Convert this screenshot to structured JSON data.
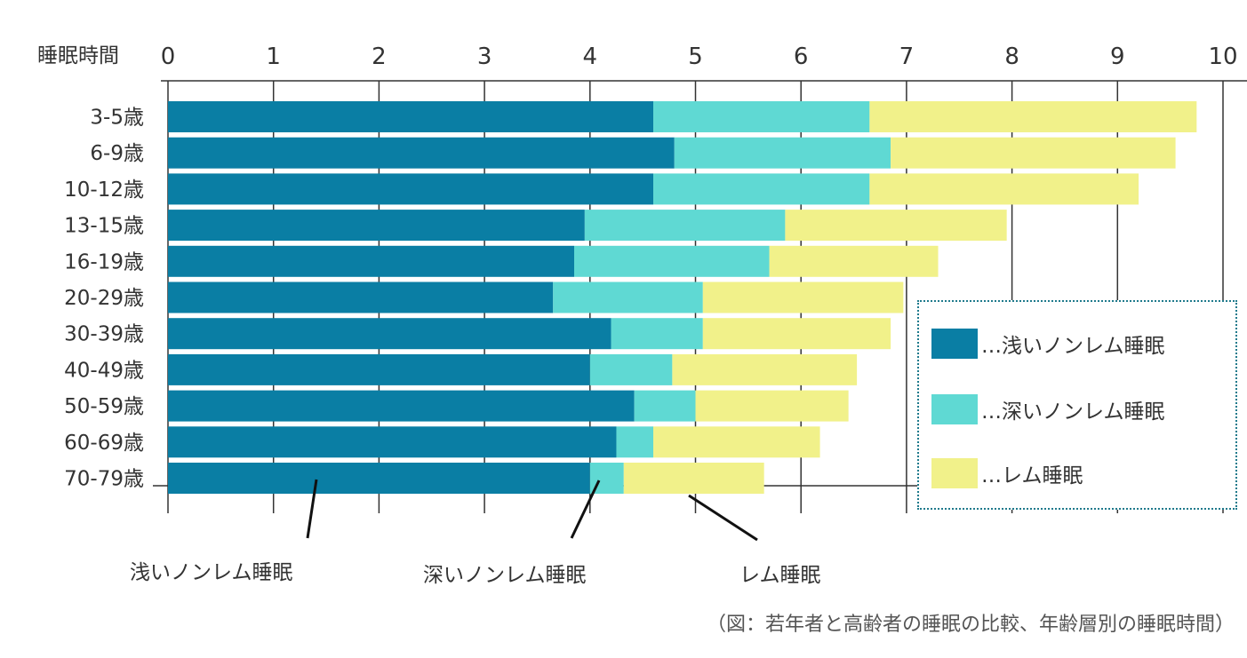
{
  "chart_data": {
    "type": "bar",
    "stacked": true,
    "orientation": "horizontal",
    "axis_title": "睡眠時間",
    "xlim": [
      0,
      10
    ],
    "xticks": [
      "0",
      "1",
      "2",
      "3",
      "4",
      "5",
      "6",
      "7",
      "8",
      "9",
      "10"
    ],
    "categories": [
      "3-5歳",
      "6-9歳",
      "10-12歳",
      "13-15歳",
      "16-19歳",
      "20-29歳",
      "30-39歳",
      "40-49歳",
      "50-59歳",
      "60-69歳",
      "70-79歳"
    ],
    "series": [
      {
        "name": "浅いノンレム睡眠",
        "color": "#0a7ea4",
        "values": [
          4.6,
          4.8,
          4.6,
          3.95,
          3.85,
          3.65,
          4.2,
          4.0,
          4.42,
          4.25,
          4.0
        ]
      },
      {
        "name": "深いノンレム睡眠",
        "color": "#5fd9d3",
        "values": [
          2.05,
          2.05,
          2.05,
          1.9,
          1.85,
          1.42,
          0.87,
          0.78,
          0.58,
          0.35,
          0.32
        ]
      },
      {
        "name": "レム睡眠",
        "color": "#f1f18a",
        "values": [
          3.1,
          2.7,
          2.55,
          2.1,
          1.6,
          1.9,
          1.78,
          1.75,
          1.45,
          1.58,
          1.33
        ]
      }
    ],
    "grid": "vertical",
    "legend_position": "right"
  },
  "legend": {
    "items": [
      {
        "label": "…浅いノンレム睡眠",
        "color": "#0a7ea4"
      },
      {
        "label": "…深いノンレム睡眠",
        "color": "#5fd9d3"
      },
      {
        "label": "…レム睡眠",
        "color": "#f1f18a"
      }
    ]
  },
  "callouts": {
    "light": "浅いノンレム睡眠",
    "deep": "深いノンレム睡眠",
    "rem": "レム睡眠"
  },
  "caption": "（図：若年者と高齢者の睡眠の比較、年齢層別の睡眠時間）"
}
